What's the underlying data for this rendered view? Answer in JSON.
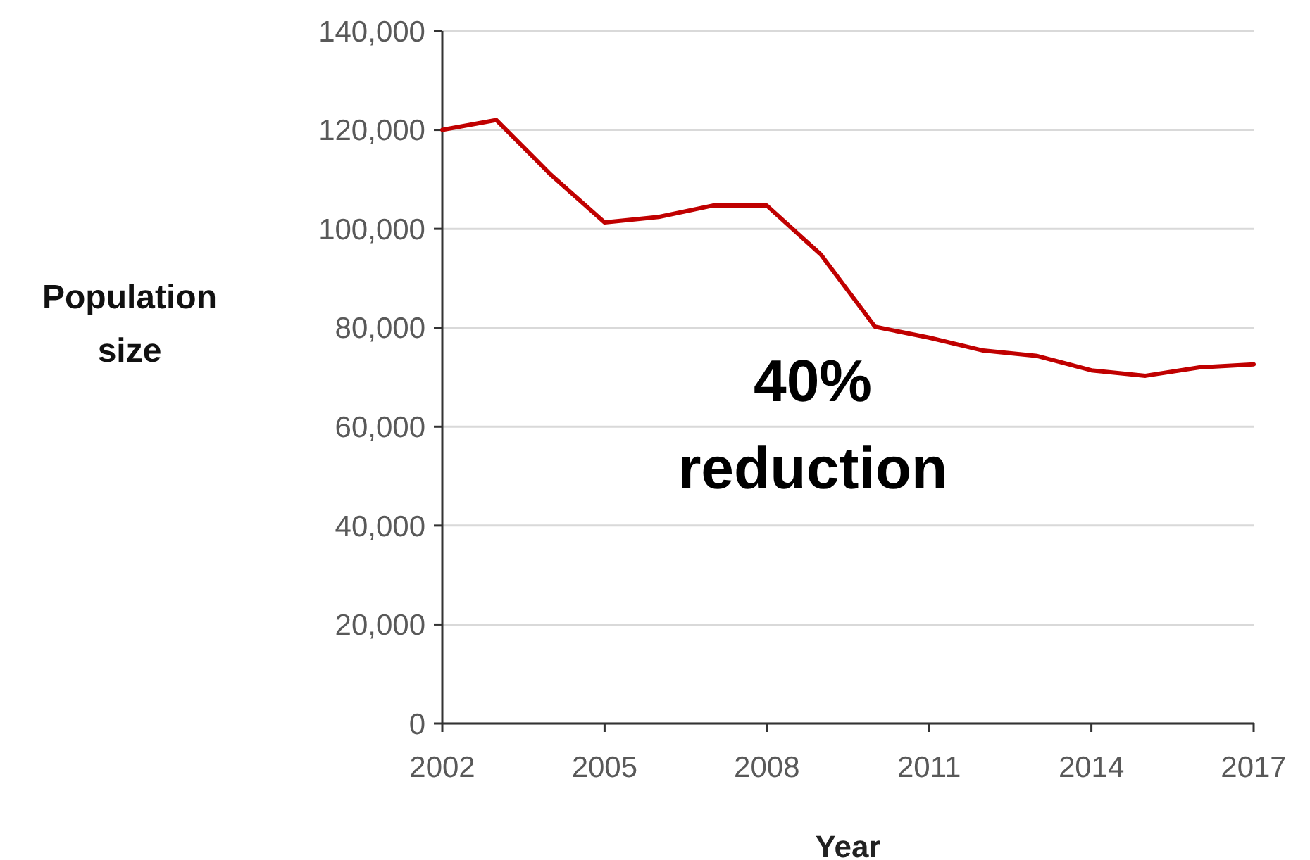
{
  "chart_data": {
    "type": "line",
    "xlabel": "Year",
    "ylabel": "Population size",
    "x": [
      2002,
      2003,
      2004,
      2005,
      2006,
      2007,
      2008,
      2009,
      2010,
      2011,
      2012,
      2013,
      2014,
      2015,
      2016,
      2017
    ],
    "series": [
      {
        "color": "#c00000",
        "values": [
          120000,
          122000,
          111000,
          101300,
          102400,
          104700,
          104700,
          94800,
          80200,
          78000,
          75400,
          74300,
          71400,
          70300,
          72000,
          72600
        ]
      }
    ],
    "xlim": [
      2002,
      2017
    ],
    "xticks": [
      2002,
      2005,
      2008,
      2011,
      2014,
      2017
    ],
    "ylim": [
      0,
      140000
    ],
    "yticks": [
      {
        "value": 0,
        "label": "0"
      },
      {
        "value": 20000,
        "label": "20,000"
      },
      {
        "value": 40000,
        "label": "40,000"
      },
      {
        "value": 60000,
        "label": "60,000"
      },
      {
        "value": 80000,
        "label": "80,000"
      },
      {
        "value": 100000,
        "label": "100,000"
      },
      {
        "value": 120000,
        "label": "120,000"
      },
      {
        "value": 140000,
        "label": "140,000"
      }
    ],
    "grid": "y",
    "marker": "none",
    "line_style": "solid",
    "annotations": [
      "40% reduction"
    ]
  }
}
